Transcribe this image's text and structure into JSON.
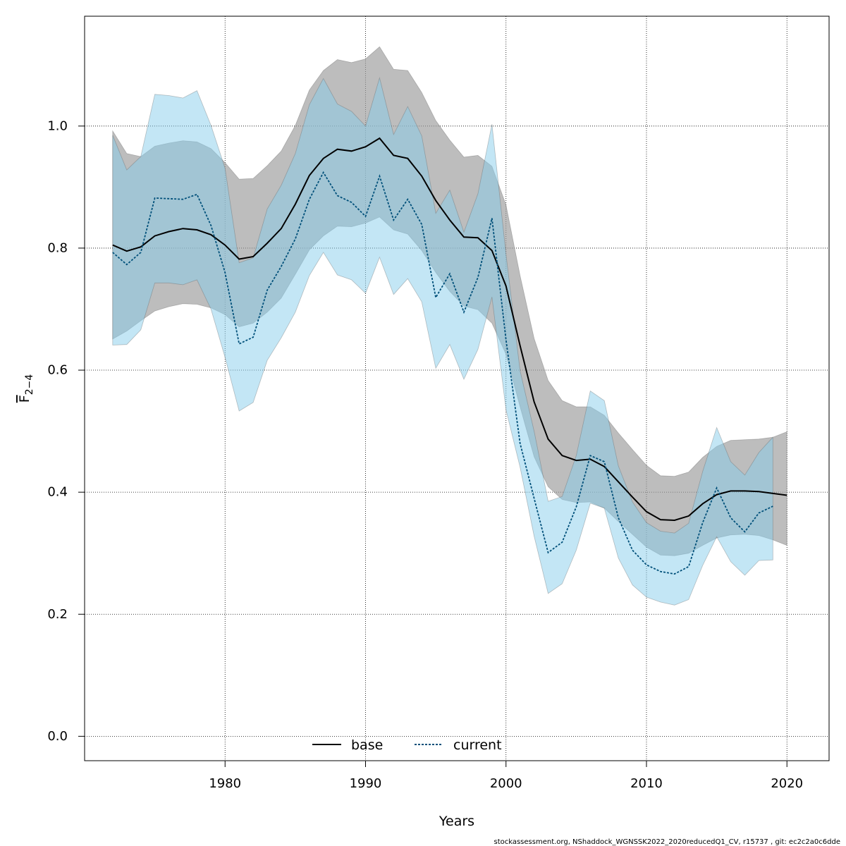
{
  "chart_data": {
    "type": "line",
    "xlabel": "Years",
    "ylabel_main": "F",
    "ylabel_sub": "2−4",
    "ylim": [
      -0.04,
      1.18
    ],
    "xlim": [
      1970,
      2023
    ],
    "yticks": [
      0.0,
      0.2,
      0.4,
      0.6,
      0.8,
      1.0
    ],
    "ytick_labels": [
      "0.0",
      "0.2",
      "0.4",
      "0.6",
      "0.8",
      "1.0"
    ],
    "xticks": [
      1980,
      1990,
      2000,
      2010,
      2020
    ],
    "xtick_labels": [
      "1980",
      "1990",
      "2000",
      "2010",
      "2020"
    ],
    "grid": true,
    "legend_position": "bottom",
    "series": [
      {
        "name": "base",
        "line_color": "#000000",
        "band_color": "#999999",
        "years": [
          1972,
          1973,
          1974,
          1975,
          1976,
          1977,
          1978,
          1979,
          1980,
          1981,
          1982,
          1983,
          1984,
          1985,
          1986,
          1987,
          1988,
          1989,
          1990,
          1991,
          1992,
          1993,
          1994,
          1995,
          1996,
          1997,
          1998,
          1999,
          2000,
          2001,
          2002,
          2003,
          2004,
          2005,
          2006,
          2007,
          2008,
          2009,
          2010,
          2011,
          2012,
          2013,
          2014,
          2015,
          2016,
          2017,
          2018,
          2019,
          2020
        ],
        "values": [
          0.805,
          0.795,
          0.802,
          0.82,
          0.827,
          0.832,
          0.83,
          0.822,
          0.805,
          0.782,
          0.786,
          0.808,
          0.832,
          0.872,
          0.919,
          0.947,
          0.962,
          0.959,
          0.966,
          0.98,
          0.952,
          0.947,
          0.918,
          0.878,
          0.846,
          0.818,
          0.817,
          0.796,
          0.738,
          0.64,
          0.548,
          0.487,
          0.46,
          0.452,
          0.454,
          0.442,
          0.417,
          0.392,
          0.368,
          0.355,
          0.354,
          0.361,
          0.381,
          0.396,
          0.402,
          0.402,
          0.401,
          0.398,
          0.395
        ],
        "lower": [
          0.651,
          0.664,
          0.681,
          0.697,
          0.704,
          0.709,
          0.708,
          0.702,
          0.691,
          0.671,
          0.677,
          0.695,
          0.718,
          0.757,
          0.797,
          0.82,
          0.836,
          0.835,
          0.841,
          0.851,
          0.83,
          0.823,
          0.796,
          0.76,
          0.729,
          0.705,
          0.699,
          0.677,
          0.626,
          0.54,
          0.458,
          0.409,
          0.388,
          0.383,
          0.384,
          0.374,
          0.352,
          0.331,
          0.31,
          0.297,
          0.296,
          0.3,
          0.313,
          0.325,
          0.33,
          0.331,
          0.329,
          0.322,
          0.313
        ],
        "upper": [
          0.992,
          0.955,
          0.95,
          0.967,
          0.972,
          0.976,
          0.974,
          0.963,
          0.94,
          0.913,
          0.914,
          0.935,
          0.959,
          1.001,
          1.059,
          1.091,
          1.109,
          1.104,
          1.11,
          1.13,
          1.093,
          1.091,
          1.055,
          1.009,
          0.977,
          0.949,
          0.952,
          0.934,
          0.871,
          0.755,
          0.652,
          0.583,
          0.55,
          0.54,
          0.54,
          0.526,
          0.497,
          0.47,
          0.444,
          0.427,
          0.426,
          0.433,
          0.457,
          0.475,
          0.485,
          0.486,
          0.487,
          0.49,
          0.499
        ]
      },
      {
        "name": "current",
        "line_color": "#00507a",
        "band_color": "#87ceeb",
        "years": [
          1972,
          1973,
          1974,
          1975,
          1976,
          1977,
          1978,
          1979,
          1980,
          1981,
          1982,
          1983,
          1984,
          1985,
          1986,
          1987,
          1988,
          1989,
          1990,
          1991,
          1992,
          1993,
          1994,
          1995,
          1996,
          1997,
          1998,
          1999,
          2000,
          2001,
          2002,
          2003,
          2004,
          2005,
          2006,
          2007,
          2008,
          2009,
          2010,
          2011,
          2012,
          2013,
          2014,
          2015,
          2016,
          2017,
          2018,
          2019
        ],
        "values": [
          0.793,
          0.773,
          0.793,
          0.882,
          0.881,
          0.88,
          0.888,
          0.837,
          0.76,
          0.643,
          0.654,
          0.731,
          0.77,
          0.815,
          0.88,
          0.924,
          0.886,
          0.875,
          0.852,
          0.918,
          0.846,
          0.88,
          0.839,
          0.719,
          0.758,
          0.695,
          0.752,
          0.849,
          0.65,
          0.48,
          0.39,
          0.301,
          0.318,
          0.376,
          0.46,
          0.45,
          0.358,
          0.305,
          0.281,
          0.27,
          0.266,
          0.278,
          0.35,
          0.407,
          0.358,
          0.335,
          0.366,
          0.377
        ],
        "lower": [
          0.641,
          0.642,
          0.666,
          0.743,
          0.743,
          0.74,
          0.748,
          0.7,
          0.621,
          0.533,
          0.547,
          0.616,
          0.653,
          0.695,
          0.755,
          0.793,
          0.756,
          0.748,
          0.726,
          0.785,
          0.724,
          0.75,
          0.712,
          0.603,
          0.642,
          0.585,
          0.634,
          0.72,
          0.535,
          0.441,
          0.328,
          0.234,
          0.25,
          0.305,
          0.382,
          0.374,
          0.292,
          0.248,
          0.228,
          0.22,
          0.215,
          0.224,
          0.28,
          0.327,
          0.286,
          0.264,
          0.288,
          0.289
        ],
        "upper": [
          0.985,
          0.928,
          0.95,
          1.052,
          1.05,
          1.046,
          1.058,
          1.001,
          0.931,
          0.776,
          0.784,
          0.864,
          0.903,
          0.955,
          1.035,
          1.078,
          1.036,
          1.024,
          1.0,
          1.079,
          0.986,
          1.032,
          0.984,
          0.857,
          0.895,
          0.826,
          0.889,
          1.003,
          0.79,
          0.599,
          0.5,
          0.385,
          0.393,
          0.46,
          0.566,
          0.55,
          0.443,
          0.384,
          0.35,
          0.336,
          0.333,
          0.349,
          0.434,
          0.506,
          0.45,
          0.428,
          0.465,
          0.49
        ]
      }
    ]
  },
  "footer_text": "stockassessment.org, NShaddock_WGNSSK2022_2020reducedQ1_CV, r15737 , git: ec2c2a0c6dde"
}
